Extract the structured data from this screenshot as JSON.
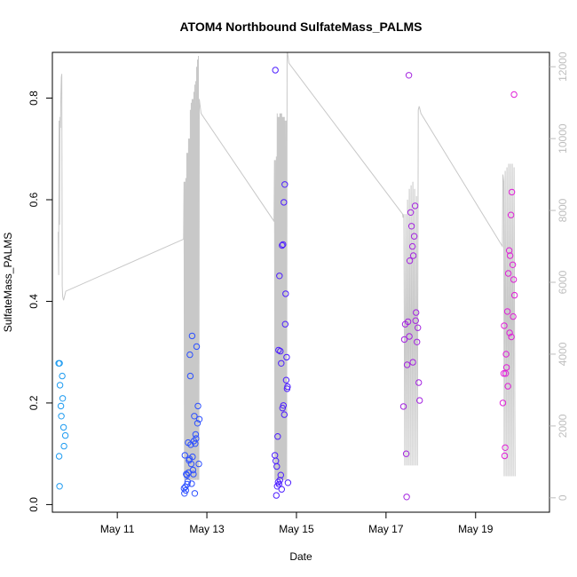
{
  "chart_data": {
    "type": "scatter",
    "title": "ATOM4 Northbound SulfateMass_PALMS",
    "xlabel": "Date",
    "ylabel": "SulfateMass_PALMS",
    "xlim": [
      9.55,
      20.65
    ],
    "ylim": [
      -0.015,
      0.89
    ],
    "y2lim": [
      -400,
      12400
    ],
    "x_ticks": [
      11,
      13,
      15,
      17,
      19
    ],
    "x_tick_labels": [
      "May 11",
      "May 13",
      "May 15",
      "May 17",
      "May 19"
    ],
    "y_ticks": [
      0.0,
      0.2,
      0.4,
      0.6,
      0.8
    ],
    "y_tick_labels": [
      "0.0",
      "0.2",
      "0.4",
      "0.6",
      "0.8"
    ],
    "y2_ticks": [
      0,
      2000,
      4000,
      6000,
      8000,
      10000,
      12000
    ],
    "y2_tick_labels": [
      "0",
      "2000",
      "4000",
      "6000",
      "8000",
      "10000",
      "12000"
    ],
    "grid": false,
    "legend": "none",
    "colors": {
      "altitude_line": "#c8c8c8",
      "right_axis": "#bebebe",
      "flight_1": "#1e9bf0",
      "flight_2": "#2d50ff",
      "flight_3": "#4d1eff",
      "flight_4": "#a424e0",
      "flight_5": "#e020d8"
    },
    "series": [
      {
        "color": "#1e9bf0",
        "x": [
          9.69,
          9.71,
          9.72,
          9.74,
          9.75,
          9.77,
          9.78,
          9.8,
          9.81,
          9.84,
          9.7,
          9.71
        ],
        "y": [
          0.278,
          0.278,
          0.235,
          0.194,
          0.174,
          0.253,
          0.209,
          0.152,
          0.115,
          0.136,
          0.095,
          0.036
        ]
      },
      {
        "color": "#2d50ff",
        "x": [
          12.49,
          12.52,
          12.54,
          12.55,
          12.57,
          12.58,
          12.6,
          12.62,
          12.63,
          12.65,
          12.67,
          12.68,
          12.7,
          12.72,
          12.74,
          12.75,
          12.77,
          12.8,
          12.83,
          12.5,
          12.53,
          12.56,
          12.59,
          12.61,
          12.64,
          12.66,
          12.69,
          12.71,
          12.73,
          12.76,
          12.79,
          12.82,
          12.51
        ],
        "y": [
          0.032,
          0.035,
          0.06,
          0.058,
          0.045,
          0.122,
          0.087,
          0.295,
          0.253,
          0.08,
          0.332,
          0.094,
          0.06,
          0.174,
          0.12,
          0.138,
          0.311,
          0.194,
          0.168,
          0.022,
          0.028,
          0.04,
          0.063,
          0.09,
          0.118,
          0.041,
          0.068,
          0.125,
          0.022,
          0.13,
          0.16,
          0.08,
          0.097
        ]
      },
      {
        "color": "#4d1eff",
        "x": [
          14.52,
          14.54,
          14.56,
          14.58,
          14.6,
          14.62,
          14.64,
          14.66,
          14.68,
          14.7,
          14.72,
          14.74,
          14.76,
          14.78,
          14.8,
          14.55,
          14.57,
          14.59,
          14.61,
          14.63,
          14.65,
          14.67,
          14.69,
          14.71,
          14.73,
          14.75,
          14.77,
          14.79,
          14.53,
          14.81
        ],
        "y": [
          0.097,
          0.086,
          0.075,
          0.134,
          0.304,
          0.45,
          0.302,
          0.278,
          0.51,
          0.512,
          0.595,
          0.63,
          0.415,
          0.29,
          0.232,
          0.018,
          0.036,
          0.044,
          0.04,
          0.048,
          0.058,
          0.03,
          0.19,
          0.195,
          0.177,
          0.355,
          0.245,
          0.228,
          0.855,
          0.043
        ]
      },
      {
        "color": "#a424e0",
        "x": [
          17.39,
          17.41,
          17.43,
          17.45,
          17.47,
          17.49,
          17.51,
          17.53,
          17.55,
          17.57,
          17.59,
          17.61,
          17.63,
          17.65,
          17.67,
          17.69,
          17.71,
          17.73,
          17.75,
          17.46,
          17.52,
          17.6,
          17.66
        ],
        "y": [
          0.193,
          0.325,
          0.355,
          0.1,
          0.275,
          0.36,
          0.845,
          0.48,
          0.575,
          0.548,
          0.508,
          0.49,
          0.528,
          0.588,
          0.378,
          0.32,
          0.348,
          0.24,
          0.205,
          0.015,
          0.331,
          0.28,
          0.362
        ]
      },
      {
        "color": "#e020d8",
        "x": [
          19.61,
          19.63,
          19.65,
          19.67,
          19.69,
          19.71,
          19.73,
          19.75,
          19.77,
          19.79,
          19.81,
          19.83,
          19.85,
          19.87,
          19.64,
          19.68,
          19.72,
          19.76,
          19.8,
          19.84,
          19.86,
          19.66
        ],
        "y": [
          0.2,
          0.258,
          0.096,
          0.258,
          0.27,
          0.38,
          0.455,
          0.5,
          0.49,
          0.57,
          0.615,
          0.472,
          0.443,
          0.412,
          0.352,
          0.296,
          0.233,
          0.338,
          0.33,
          0.37,
          0.807,
          0.112
        ]
      }
    ],
    "altitude_series": {
      "color": "#c8c8c8",
      "x": [
        9.68,
        9.69,
        9.7,
        9.71,
        9.72,
        9.73,
        9.74,
        9.75,
        9.76,
        9.77,
        9.78,
        9.8,
        9.82,
        9.84,
        9.85,
        12.48,
        12.49,
        12.5,
        12.51,
        12.52,
        12.53,
        12.54,
        12.55,
        12.56,
        12.57,
        12.58,
        12.59,
        12.6,
        12.61,
        12.62,
        12.63,
        12.64,
        12.65,
        12.66,
        12.67,
        12.68,
        12.69,
        12.7,
        12.71,
        12.72,
        12.73,
        12.74,
        12.75,
        12.76,
        12.77,
        12.78,
        12.79,
        12.8,
        12.81,
        12.82,
        12.83,
        12.84,
        12.85,
        12.86,
        12.87,
        14.5,
        14.51,
        14.52,
        14.53,
        14.54,
        14.55,
        14.56,
        14.57,
        14.58,
        14.59,
        14.6,
        14.61,
        14.62,
        14.63,
        14.64,
        14.65,
        14.66,
        14.67,
        14.68,
        14.69,
        14.7,
        14.71,
        14.72,
        14.73,
        14.74,
        14.75,
        14.76,
        14.77,
        14.78,
        14.79,
        14.8,
        14.81,
        14.82,
        14.83,
        17.37,
        17.38,
        17.4,
        17.42,
        17.44,
        17.46,
        17.48,
        17.5,
        17.52,
        17.54,
        17.56,
        17.58,
        17.6,
        17.62,
        17.64,
        17.66,
        17.68,
        17.7,
        17.72,
        17.74,
        17.76,
        17.78,
        19.6,
        19.61,
        19.62,
        19.63,
        19.64,
        19.66,
        19.68,
        19.7,
        19.72,
        19.74,
        19.76,
        19.78,
        19.8,
        19.82,
        19.84,
        19.86,
        19.88
      ],
      "y": [
        7400,
        6200,
        10500,
        7600,
        10600,
        10300,
        11200,
        11700,
        11800,
        5900,
        5600,
        5500,
        5600,
        5700,
        5750,
        7200,
        8800,
        500,
        8800,
        500,
        8900,
        500,
        9600,
        500,
        9600,
        500,
        10000,
        500,
        10000,
        500,
        10800,
        500,
        11000,
        500,
        11100,
        500,
        11100,
        500,
        11300,
        500,
        11500,
        500,
        11600,
        500,
        12000,
        500,
        12200,
        500,
        12300,
        500,
        11100,
        11000,
        10900,
        10800,
        10700,
        7700,
        9400,
        500,
        9400,
        500,
        9500,
        500,
        10700,
        500,
        10600,
        500,
        10600,
        500,
        10700,
        500,
        10700,
        500,
        10700,
        500,
        10600,
        500,
        10600,
        500,
        10600,
        500,
        10500,
        500,
        10500,
        500,
        12400,
        12400,
        12300,
        12200,
        12100,
        7900,
        7800,
        7900,
        900,
        7900,
        900,
        8300,
        900,
        8600,
        900,
        8700,
        900,
        8800,
        900,
        8600,
        900,
        8400,
        900,
        10800,
        10900,
        10800,
        10700,
        7000,
        9000,
        8900,
        8800,
        600,
        9100,
        600,
        9200,
        600,
        9300,
        600,
        9300,
        600,
        9300,
        600,
        9200,
        600
      ]
    }
  }
}
